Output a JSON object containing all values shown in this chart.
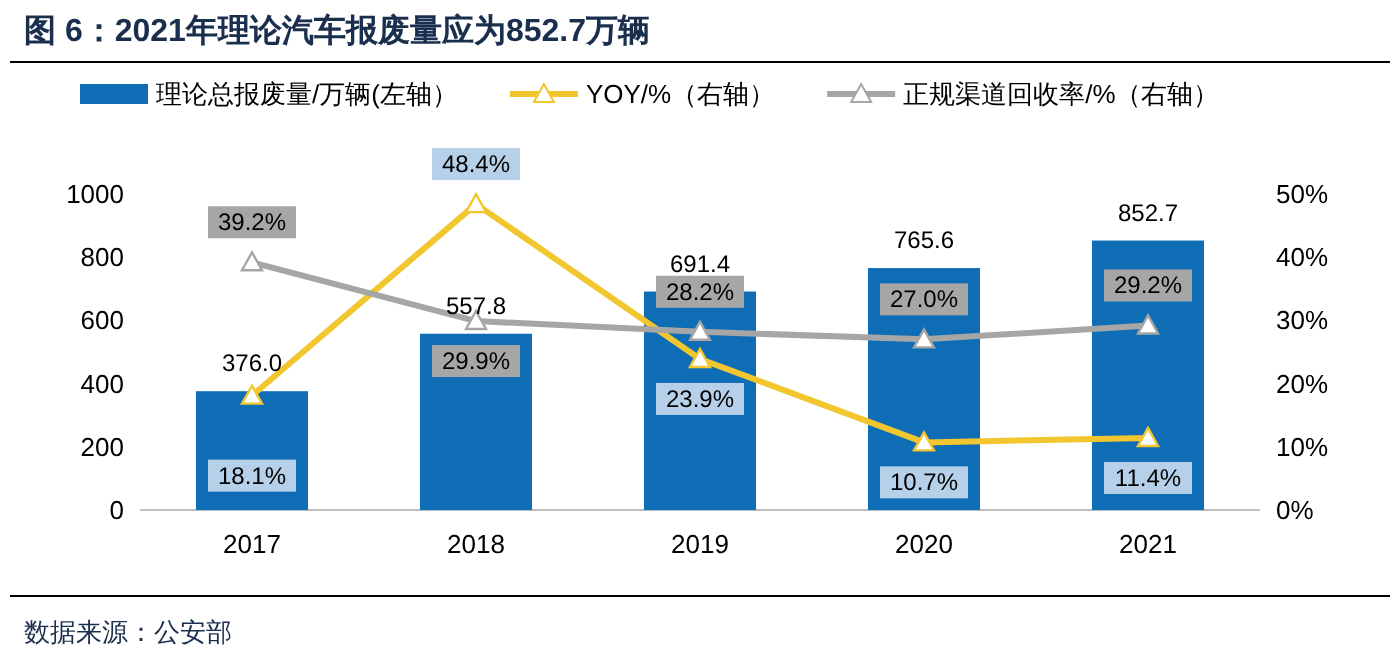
{
  "chart_data": {
    "type": "bar",
    "title": "图 6：2021年理论汽车报废量应为852.7万辆",
    "categories": [
      "2017",
      "2018",
      "2019",
      "2020",
      "2021"
    ],
    "series": [
      {
        "name": "理论总报废量/万辆(左轴）",
        "color": "#0f6db6",
        "values": [
          376.0,
          557.8,
          691.4,
          765.6,
          852.7
        ],
        "value_labels": [
          "376.0",
          "557.8",
          "691.4",
          "765.6",
          "852.7"
        ]
      },
      {
        "name": "YOY/%（右轴）",
        "type": "line",
        "axis": "y2",
        "marker": "triangle",
        "color": "#f2c62e",
        "values": [
          18.1,
          48.4,
          23.9,
          10.7,
          11.4
        ],
        "value_labels": [
          "18.1%",
          "48.4%",
          "23.9%",
          "10.7%",
          "11.4%"
        ]
      },
      {
        "name": "正规渠道回收率/%（右轴）",
        "type": "line",
        "axis": "y2",
        "marker": "triangle",
        "color": "#a6a6a6",
        "values": [
          39.2,
          29.9,
          28.2,
          27.0,
          29.2
        ],
        "value_labels": [
          "39.2%",
          "29.9%",
          "28.2%",
          "27.0%",
          "29.2%"
        ]
      }
    ],
    "ylim": [
      0,
      1000
    ],
    "yticks": [
      0,
      200,
      400,
      600,
      800,
      1000
    ],
    "y2lim": [
      0,
      50
    ],
    "y2ticks": [
      {
        "value": 0,
        "label": "0%"
      },
      {
        "value": 10,
        "label": "10%"
      },
      {
        "value": 20,
        "label": "20%"
      },
      {
        "value": 30,
        "label": "30%"
      },
      {
        "value": 40,
        "label": "40%"
      },
      {
        "value": 50,
        "label": "50%"
      }
    ],
    "legend": "top",
    "grid": false,
    "annotations": [
      "数据来源：公安部"
    ]
  }
}
